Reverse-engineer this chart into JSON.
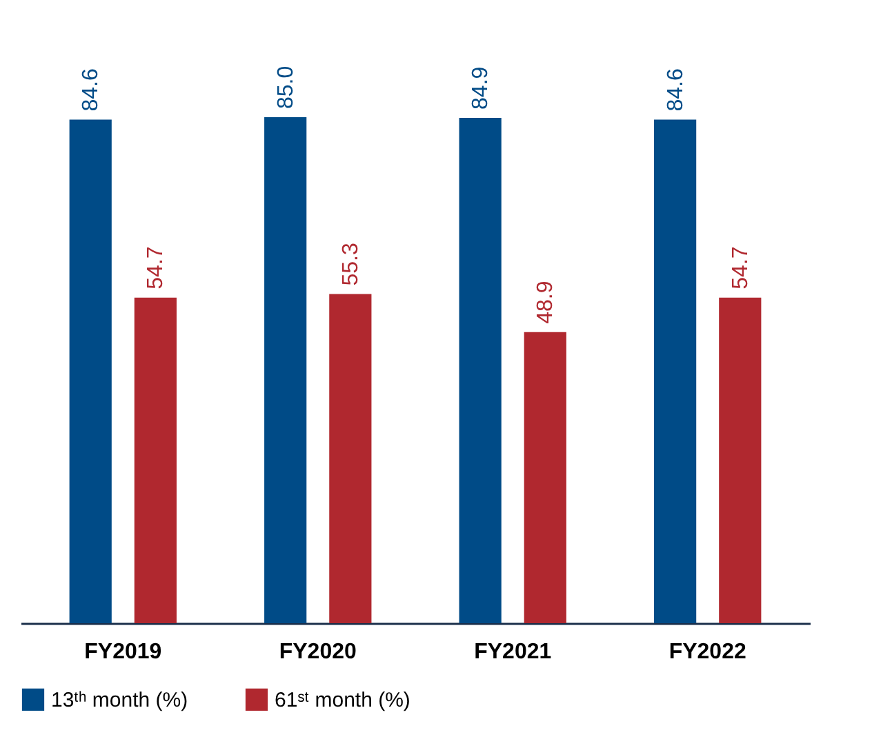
{
  "chart_data": {
    "type": "bar",
    "categories": [
      "FY2019",
      "FY2020",
      "FY2021",
      "FY2022"
    ],
    "series": [
      {
        "name": "13ᵗʰ month (%)",
        "color": "#004b87",
        "values": [
          84.6,
          85.0,
          84.9,
          84.6
        ],
        "value_labels": [
          "84.6",
          "85.0",
          "84.9",
          "84.6"
        ]
      },
      {
        "name": "61ˢᵗ month (%)",
        "color": "#b0282f",
        "values": [
          54.7,
          55.3,
          48.9,
          54.7
        ],
        "value_labels": [
          "54.7",
          "55.3",
          "48.9",
          "54.7"
        ]
      }
    ],
    "legend": "bottom",
    "grid": false
  }
}
